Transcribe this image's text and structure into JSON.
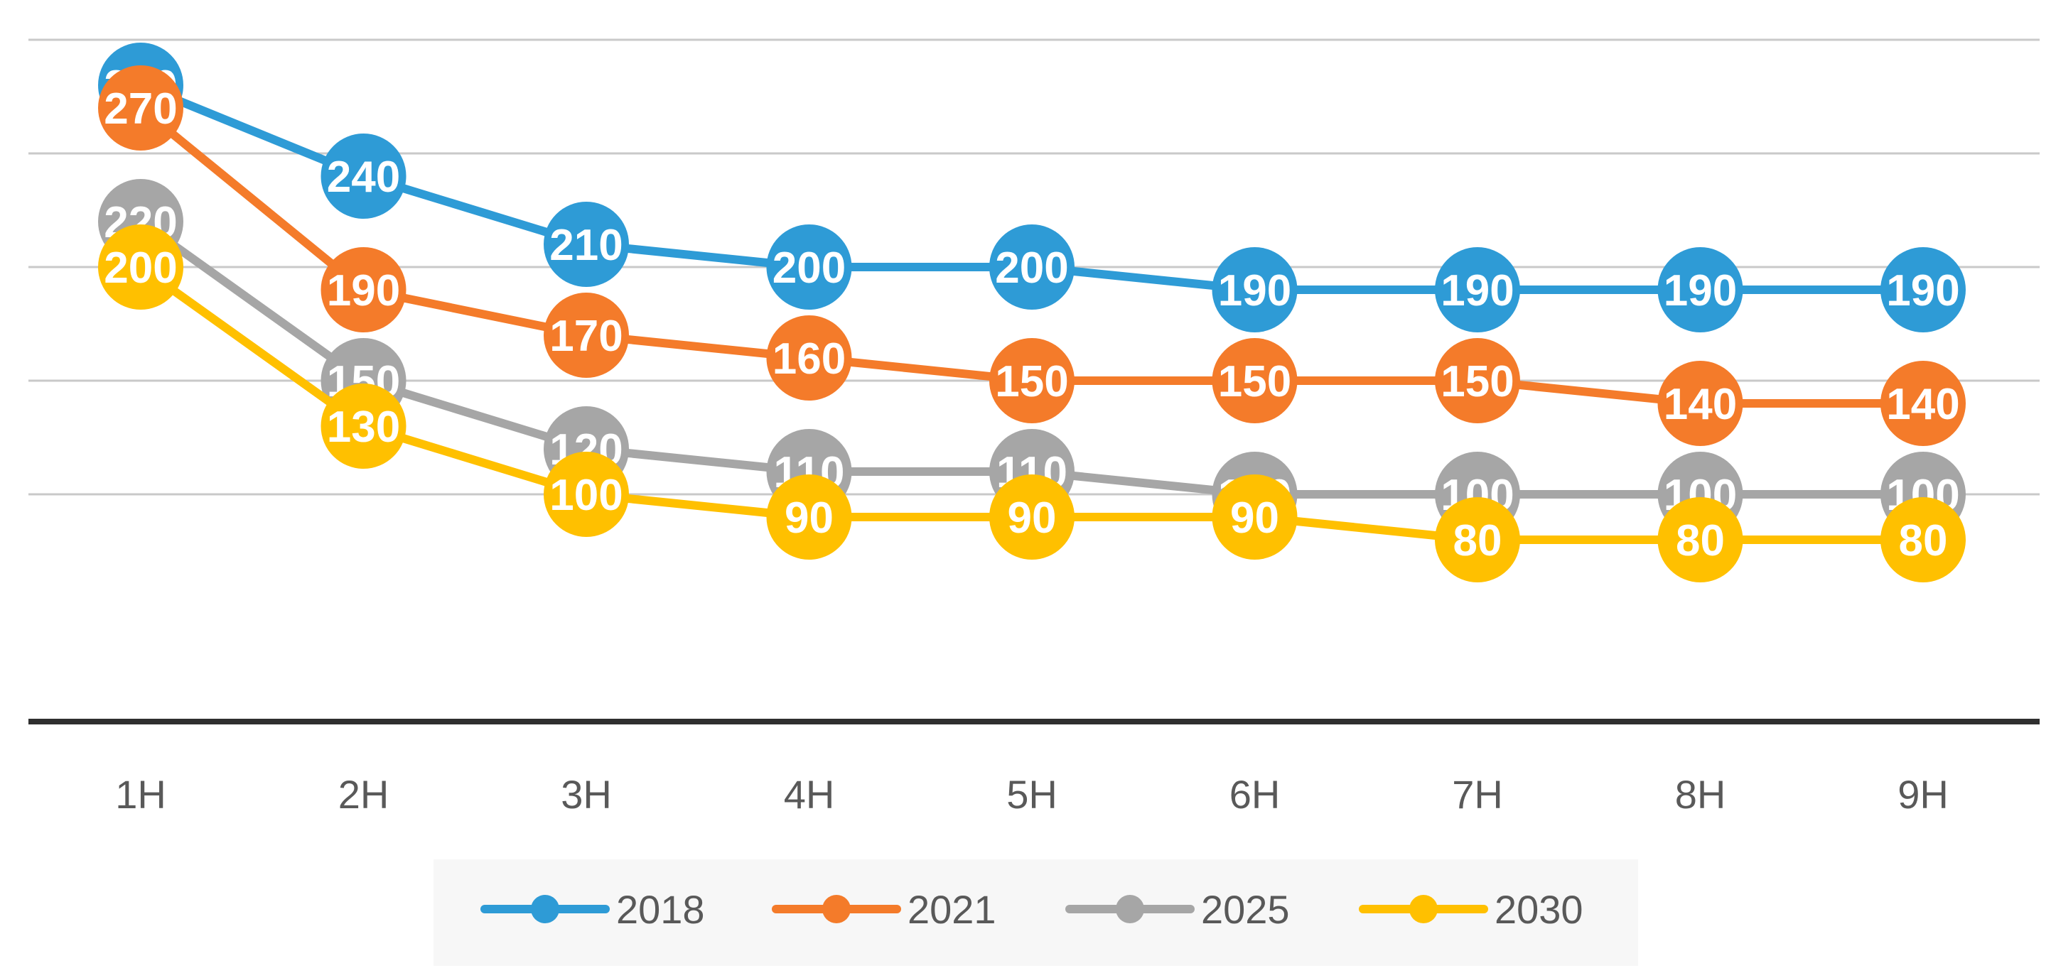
{
  "chart_data": {
    "type": "line",
    "title": "",
    "xlabel": "",
    "ylabel": "",
    "ylim": [
      0,
      300
    ],
    "gridlines": [
      100,
      150,
      200,
      250,
      300
    ],
    "legend_position": "bottom",
    "categories": [
      "1H",
      "2H",
      "3H",
      "4H",
      "5H",
      "6H",
      "7H",
      "8H",
      "9H"
    ],
    "series": [
      {
        "name": "2018",
        "color": "#2E9BD6",
        "values": [
          280,
          240,
          210,
          200,
          200,
          190,
          190,
          190,
          190
        ]
      },
      {
        "name": "2021",
        "color": "#F47B2A",
        "values": [
          270,
          190,
          170,
          160,
          150,
          150,
          150,
          140,
          140
        ]
      },
      {
        "name": "2025",
        "color": "#A6A6A6",
        "values": [
          220,
          150,
          120,
          110,
          110,
          100,
          100,
          100,
          100
        ]
      },
      {
        "name": "2030",
        "color": "#FFC000",
        "values": [
          200,
          130,
          100,
          90,
          90,
          90,
          80,
          80,
          80
        ]
      }
    ]
  }
}
